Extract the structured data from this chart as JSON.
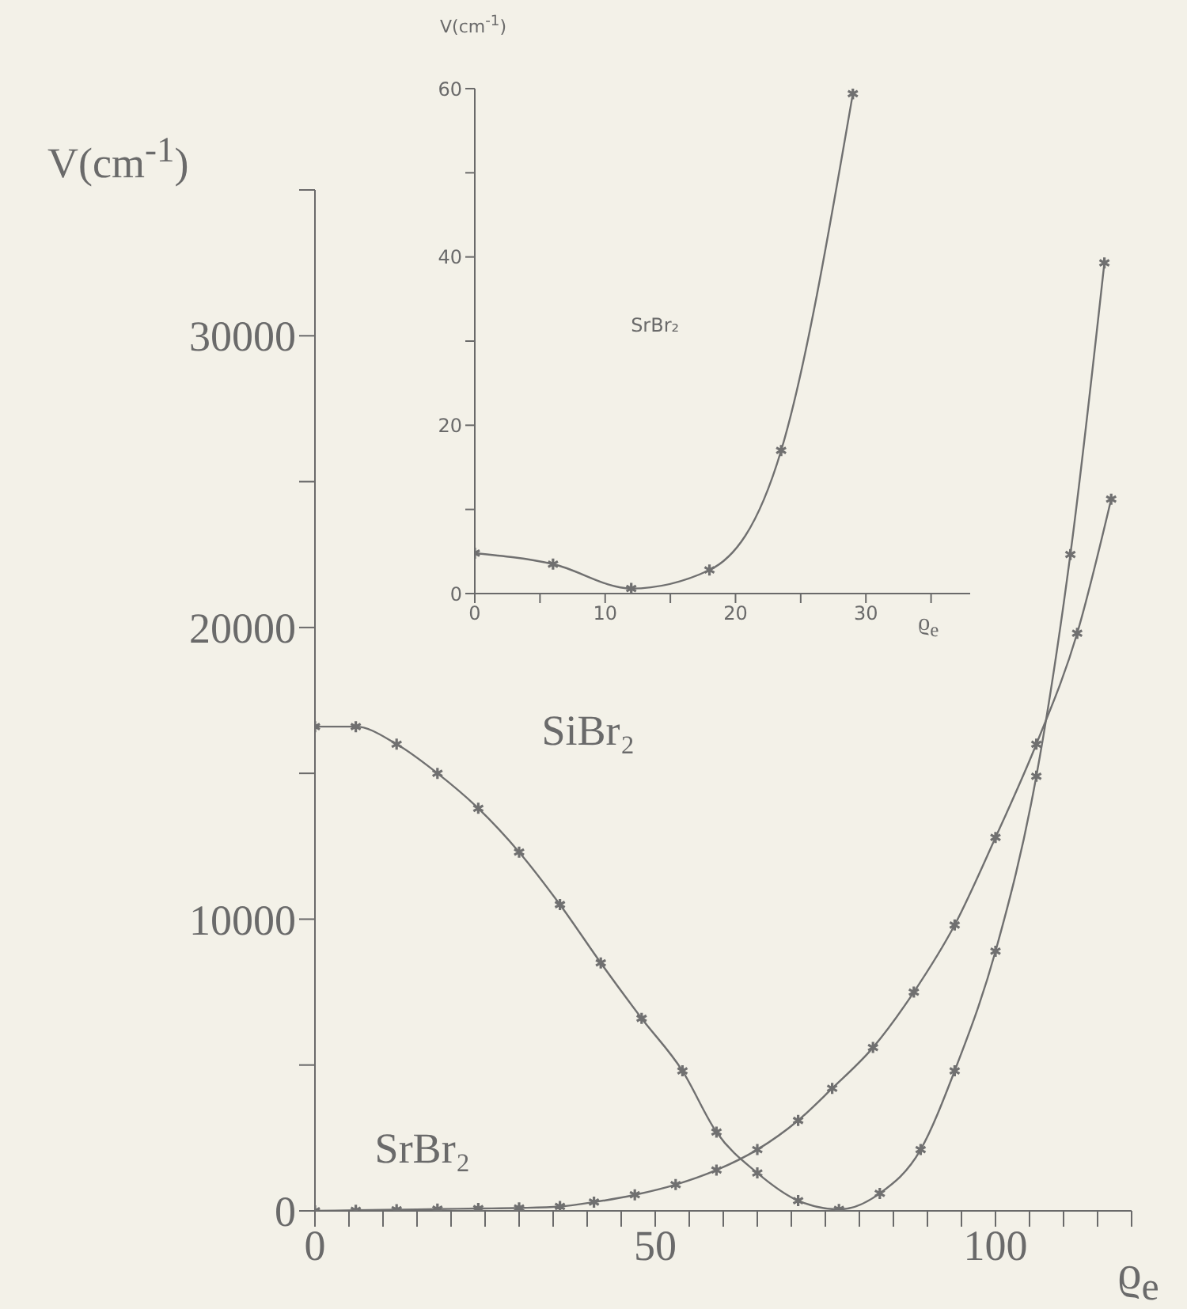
{
  "chart_data": [
    {
      "type": "line",
      "xlabel": "ϱ$_{e}$",
      "ylabel": "V(cm$^{-1}$)",
      "xlim": [
        0,
        120
      ],
      "ylim": [
        0,
        35000
      ],
      "xticks": [
        0,
        {
          "value": 5,
          "label": null
        },
        {
          "value": 10,
          "label": null
        },
        {
          "value": 15,
          "label": null
        },
        {
          "value": 20,
          "label": null
        },
        {
          "value": 25,
          "label": null
        },
        {
          "value": 30,
          "label": null
        },
        {
          "value": 35,
          "label": null
        },
        {
          "value": 40,
          "label": null
        },
        {
          "value": 45,
          "label": null
        },
        50,
        {
          "value": 55,
          "label": null
        },
        {
          "value": 60,
          "label": null
        },
        {
          "value": 65,
          "label": null
        },
        {
          "value": 70,
          "label": null
        },
        {
          "value": 75,
          "label": null
        },
        {
          "value": 80,
          "label": null
        },
        {
          "value": 85,
          "label": null
        },
        {
          "value": 90,
          "label": null
        },
        {
          "value": 95,
          "label": null
        },
        100,
        {
          "value": 105,
          "label": null
        },
        {
          "value": 110,
          "label": null
        },
        {
          "value": 115,
          "label": null
        },
        {
          "value": 120,
          "label": null
        }
      ],
      "yticks": [
        0,
        {
          "value": 5000,
          "label": null
        },
        10000,
        {
          "value": 15000,
          "label": null
        },
        20000,
        {
          "value": 25000,
          "label": null
        },
        30000,
        {
          "value": 35000,
          "label": null
        }
      ],
      "marker": "cross",
      "line_style": "solid",
      "series": [
        {
          "name": "SiBr₂",
          "color": "#707070",
          "x": [
            0,
            6,
            12,
            18,
            24,
            30,
            36,
            42,
            48,
            54,
            59,
            65,
            71,
            77,
            83,
            89,
            94,
            100,
            106,
            111,
            116
          ],
          "values": [
            16600,
            16600,
            16000,
            15000,
            13800,
            12300,
            10500,
            8500,
            6600,
            4800,
            2700,
            1300,
            350,
            50,
            600,
            2100,
            4800,
            8900,
            14900,
            22500,
            32500
          ]
        },
        {
          "name": "SrBr₂",
          "color": "#707070",
          "x": [
            0,
            6,
            12,
            18,
            24,
            30,
            36,
            41,
            47,
            53,
            59,
            65,
            71,
            76,
            82,
            88,
            94,
            100,
            106,
            112,
            117
          ],
          "values": [
            0,
            20,
            40,
            60,
            80,
            100,
            150,
            300,
            550,
            900,
            1400,
            2100,
            3100,
            4200,
            5600,
            7500,
            9800,
            12800,
            16000,
            19800,
            24400
          ]
        }
      ]
    },
    {
      "type": "line",
      "xlabel": "ϱ$_{e}$",
      "ylabel": "V(cm$^{-1}$)",
      "xlim": [
        0,
        38
      ],
      "ylim": [
        0,
        60
      ],
      "xticks": [
        0,
        {
          "value": 5,
          "label": null
        },
        10,
        {
          "value": 15,
          "label": null
        },
        20,
        {
          "value": 25,
          "label": null
        },
        30,
        {
          "value": 35,
          "label": null
        }
      ],
      "yticks": [
        0,
        {
          "value": 10,
          "label": null
        },
        20,
        {
          "value": 30,
          "label": null
        },
        40,
        {
          "value": 50,
          "label": null
        },
        60
      ],
      "marker": "cross",
      "line_style": "solid",
      "series": [
        {
          "name": "SrBr₂",
          "color": "#707070",
          "x": [
            0,
            6,
            12,
            18,
            23.5,
            29
          ],
          "values": [
            4.8,
            3.5,
            0.6,
            2.8,
            17,
            59.4
          ]
        }
      ]
    }
  ]
}
